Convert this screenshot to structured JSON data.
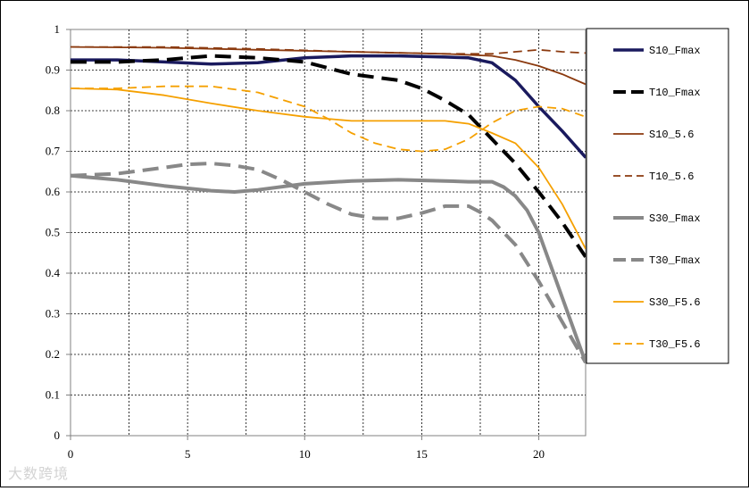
{
  "chart_data": {
    "type": "line",
    "title": "",
    "xlabel": "",
    "ylabel": "",
    "xlim": [
      0,
      22
    ],
    "ylim": [
      0,
      1
    ],
    "xticks": [
      0,
      5,
      10,
      15,
      20
    ],
    "xtick_labels": [
      "0",
      "5",
      "10",
      "15",
      "20"
    ],
    "yticks": [
      0,
      0.1,
      0.2,
      0.3,
      0.4,
      0.5,
      0.6,
      0.7,
      0.8,
      0.9,
      1
    ],
    "ytick_labels": [
      "0",
      "0.1",
      "0.2",
      "0.3",
      "0.4",
      "0.5",
      "0.6",
      "0.7",
      "0.8",
      "0.9",
      "1"
    ],
    "grid": true,
    "legend_position": "right",
    "series": [
      {
        "name": "S10_Fmax",
        "color": "#1a1a5e",
        "dash": "solid",
        "width": 3.5,
        "x": [
          0,
          2,
          4,
          6,
          8,
          10,
          12,
          14,
          16,
          17,
          18,
          19,
          20,
          21,
          22
        ],
        "y": [
          0.925,
          0.925,
          0.92,
          0.915,
          0.918,
          0.93,
          0.935,
          0.935,
          0.932,
          0.93,
          0.918,
          0.875,
          0.81,
          0.75,
          0.685
        ]
      },
      {
        "name": "T10_Fmax",
        "color": "#000000",
        "dash": "long",
        "width": 4,
        "x": [
          0,
          2,
          4,
          6,
          8,
          10,
          11,
          12,
          14,
          15,
          16,
          17,
          18,
          19,
          20,
          21,
          22
        ],
        "y": [
          0.92,
          0.92,
          0.925,
          0.935,
          0.93,
          0.92,
          0.905,
          0.89,
          0.875,
          0.855,
          0.825,
          0.79,
          0.73,
          0.67,
          0.6,
          0.525,
          0.44
        ]
      },
      {
        "name": "S10_5.6",
        "color": "#8b3a0f",
        "dash": "solid",
        "width": 1.8,
        "x": [
          0,
          4,
          8,
          12,
          16,
          18,
          19,
          20,
          21,
          22
        ],
        "y": [
          0.957,
          0.955,
          0.95,
          0.945,
          0.94,
          0.935,
          0.925,
          0.91,
          0.89,
          0.865
        ]
      },
      {
        "name": "T10_5.6",
        "color": "#8b3a0f",
        "dash": "medium",
        "width": 1.8,
        "x": [
          0,
          4,
          8,
          12,
          16,
          18,
          19,
          20,
          21,
          22
        ],
        "y": [
          0.957,
          0.957,
          0.952,
          0.945,
          0.94,
          0.94,
          0.945,
          0.95,
          0.945,
          0.942
        ]
      },
      {
        "name": "S30_Fmax",
        "color": "#888888",
        "dash": "solid",
        "width": 4,
        "x": [
          0,
          2,
          4,
          6,
          7,
          8,
          10,
          12,
          14,
          16,
          17,
          18,
          18.5,
          19,
          19.5,
          20,
          20.5,
          21,
          21.5,
          22
        ],
        "y": [
          0.64,
          0.63,
          0.615,
          0.603,
          0.6,
          0.605,
          0.62,
          0.627,
          0.63,
          0.627,
          0.625,
          0.625,
          0.612,
          0.59,
          0.555,
          0.5,
          0.42,
          0.34,
          0.26,
          0.18
        ]
      },
      {
        "name": "T30_Fmax",
        "color": "#888888",
        "dash": "long",
        "width": 4,
        "x": [
          0,
          2,
          4,
          5,
          6,
          7,
          8,
          9,
          10,
          11,
          12,
          13,
          14,
          15,
          16,
          17,
          17.5,
          18,
          19,
          20,
          21,
          22
        ],
        "y": [
          0.64,
          0.645,
          0.66,
          0.668,
          0.67,
          0.665,
          0.655,
          0.63,
          0.6,
          0.57,
          0.545,
          0.535,
          0.535,
          0.548,
          0.565,
          0.565,
          0.55,
          0.53,
          0.47,
          0.38,
          0.28,
          0.18
        ]
      },
      {
        "name": "S30_F5.6",
        "color": "#f5a000",
        "dash": "solid",
        "width": 1.8,
        "x": [
          0,
          2,
          4,
          6,
          8,
          10,
          12,
          14,
          16,
          17,
          18,
          19,
          20,
          21,
          22
        ],
        "y": [
          0.855,
          0.852,
          0.838,
          0.818,
          0.8,
          0.785,
          0.775,
          0.775,
          0.775,
          0.768,
          0.745,
          0.72,
          0.66,
          0.57,
          0.46
        ]
      },
      {
        "name": "T30_F5.6",
        "color": "#f5a000",
        "dash": "medium",
        "width": 1.8,
        "x": [
          0,
          2,
          4,
          6,
          8,
          10,
          11,
          12,
          13,
          14,
          15,
          16,
          17,
          18,
          19,
          20,
          21,
          22
        ],
        "y": [
          0.855,
          0.855,
          0.86,
          0.86,
          0.845,
          0.81,
          0.78,
          0.745,
          0.72,
          0.705,
          0.7,
          0.705,
          0.73,
          0.77,
          0.8,
          0.81,
          0.805,
          0.785
        ]
      }
    ]
  },
  "watermark": "大数跨境"
}
